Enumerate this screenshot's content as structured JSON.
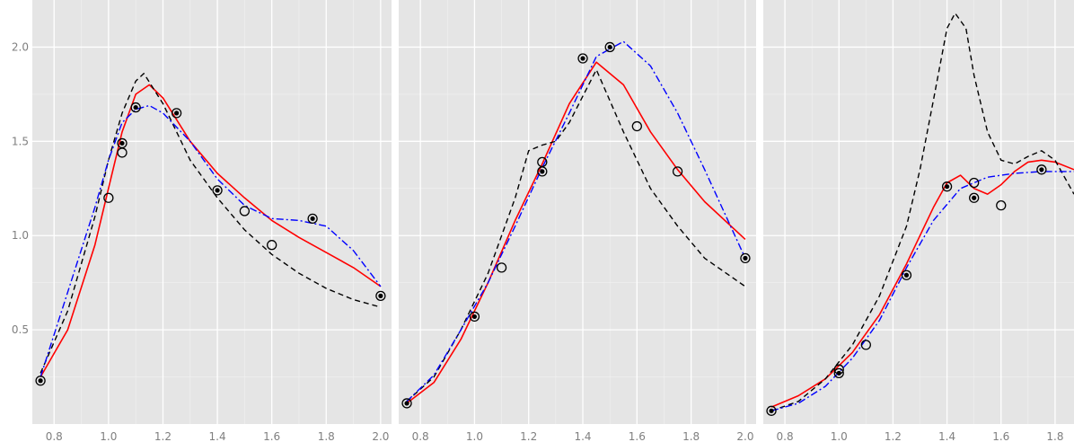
{
  "chart_data": [
    {
      "type": "scatter",
      "title": "",
      "xlabel": "",
      "ylabel": "",
      "xlim": [
        0.72,
        2.04
      ],
      "ylim": [
        0.0,
        2.25
      ],
      "x_ticks": [
        0.8,
        1.0,
        1.2,
        1.4,
        1.6,
        1.8,
        2.0
      ],
      "x_tick_labels": [
        "0.8",
        "1.0",
        "1.2",
        "1.4",
        "1.6",
        "1.8",
        "2.0"
      ],
      "y_ticks": [
        0.5,
        1.0,
        1.5,
        2.0
      ],
      "y_tick_labels": [
        "0.5",
        "1.0",
        "1.5",
        "2.0"
      ],
      "grid": true,
      "points_filled": [
        [
          0.75,
          0.23
        ],
        [
          1.05,
          1.49
        ],
        [
          1.1,
          1.68
        ],
        [
          1.25,
          1.65
        ],
        [
          1.4,
          1.24
        ],
        [
          1.75,
          1.09
        ],
        [
          2.0,
          0.68
        ]
      ],
      "points_open": [
        [
          1.0,
          1.2
        ],
        [
          1.05,
          1.44
        ],
        [
          1.5,
          1.13
        ],
        [
          1.6,
          0.95
        ]
      ],
      "series": [
        {
          "style": "solid",
          "color": "#ff0000",
          "x": [
            0.75,
            0.85,
            0.95,
            1.0,
            1.05,
            1.1,
            1.15,
            1.2,
            1.3,
            1.4,
            1.5,
            1.6,
            1.7,
            1.8,
            1.9,
            2.0
          ],
          "y": [
            0.25,
            0.5,
            0.95,
            1.25,
            1.55,
            1.75,
            1.8,
            1.73,
            1.5,
            1.33,
            1.2,
            1.08,
            0.99,
            0.91,
            0.83,
            0.73
          ]
        },
        {
          "style": "dashed",
          "color": "#000000",
          "x": [
            0.75,
            0.85,
            0.95,
            1.0,
            1.05,
            1.1,
            1.13,
            1.2,
            1.3,
            1.4,
            1.5,
            1.6,
            1.7,
            1.8,
            1.9,
            2.0
          ],
          "y": [
            0.27,
            0.6,
            1.1,
            1.4,
            1.65,
            1.82,
            1.86,
            1.7,
            1.4,
            1.2,
            1.03,
            0.9,
            0.8,
            0.72,
            0.66,
            0.62
          ]
        },
        {
          "style": "dotdash",
          "color": "#0000ff",
          "x": [
            0.75,
            0.85,
            0.95,
            1.0,
            1.05,
            1.1,
            1.15,
            1.2,
            1.3,
            1.4,
            1.5,
            1.6,
            1.7,
            1.8,
            1.9,
            2.0
          ],
          "y": [
            0.25,
            0.7,
            1.15,
            1.4,
            1.6,
            1.67,
            1.69,
            1.65,
            1.5,
            1.3,
            1.16,
            1.09,
            1.08,
            1.05,
            0.92,
            0.73
          ]
        }
      ]
    },
    {
      "type": "scatter",
      "title": "",
      "xlabel": "",
      "ylabel": "",
      "xlim": [
        0.72,
        2.04
      ],
      "ylim": [
        0.0,
        2.25
      ],
      "x_ticks": [
        0.8,
        1.0,
        1.2,
        1.4,
        1.6,
        1.8,
        2.0
      ],
      "x_tick_labels": [
        "0.8",
        "1.0",
        "1.2",
        "1.4",
        "1.6",
        "1.8",
        "2.0"
      ],
      "y_ticks": [
        0.5,
        1.0,
        1.5,
        2.0
      ],
      "y_tick_labels": [],
      "grid": true,
      "points_filled": [
        [
          0.75,
          0.11
        ],
        [
          1.0,
          0.57
        ],
        [
          1.25,
          1.34
        ],
        [
          1.4,
          1.94
        ],
        [
          1.5,
          2.0
        ],
        [
          2.0,
          0.88
        ]
      ],
      "points_open": [
        [
          1.1,
          0.83
        ],
        [
          1.25,
          1.39
        ],
        [
          1.6,
          1.58
        ],
        [
          1.75,
          1.34
        ]
      ],
      "series": [
        {
          "style": "solid",
          "color": "#ff0000",
          "x": [
            0.75,
            0.85,
            0.95,
            1.05,
            1.15,
            1.25,
            1.35,
            1.45,
            1.55,
            1.65,
            1.75,
            1.85,
            2.0
          ],
          "y": [
            0.11,
            0.22,
            0.45,
            0.75,
            1.08,
            1.38,
            1.7,
            1.92,
            1.8,
            1.55,
            1.35,
            1.18,
            0.98
          ]
        },
        {
          "style": "dashed",
          "color": "#000000",
          "x": [
            0.75,
            0.85,
            0.95,
            1.05,
            1.15,
            1.2,
            1.25,
            1.3,
            1.35,
            1.45,
            1.55,
            1.65,
            1.75,
            1.85,
            2.0
          ],
          "y": [
            0.12,
            0.25,
            0.5,
            0.8,
            1.2,
            1.45,
            1.48,
            1.5,
            1.6,
            1.88,
            1.55,
            1.25,
            1.05,
            0.88,
            0.73
          ]
        },
        {
          "style": "dotdash",
          "color": "#0000ff",
          "x": [
            0.75,
            0.85,
            0.95,
            1.05,
            1.15,
            1.25,
            1.35,
            1.45,
            1.55,
            1.65,
            1.75,
            1.85,
            2.0
          ],
          "y": [
            0.12,
            0.26,
            0.5,
            0.75,
            1.05,
            1.36,
            1.65,
            1.95,
            2.03,
            1.9,
            1.65,
            1.35,
            0.88
          ]
        }
      ]
    },
    {
      "type": "scatter",
      "title": "",
      "xlabel": "",
      "ylabel": "",
      "xlim": [
        0.72,
        1.87
      ],
      "ylim": [
        0.0,
        2.25
      ],
      "x_ticks": [
        0.8,
        1.0,
        1.2,
        1.4,
        1.6,
        1.8
      ],
      "x_tick_labels": [
        "0.8",
        "1.0",
        "1.2",
        "1.4",
        "1.6",
        "1.8"
      ],
      "y_ticks": [
        0.5,
        1.0,
        1.5,
        2.0
      ],
      "y_tick_labels": [],
      "grid": true,
      "points_filled": [
        [
          0.75,
          0.07
        ],
        [
          1.0,
          0.27
        ],
        [
          1.25,
          0.79
        ],
        [
          1.4,
          1.26
        ],
        [
          1.5,
          1.2
        ],
        [
          1.75,
          1.35
        ]
      ],
      "points_open": [
        [
          1.0,
          0.29
        ],
        [
          1.1,
          0.42
        ],
        [
          1.5,
          1.28
        ],
        [
          1.6,
          1.16
        ]
      ],
      "series": [
        {
          "style": "solid",
          "color": "#ff0000",
          "x": [
            0.75,
            0.85,
            0.95,
            1.05,
            1.15,
            1.25,
            1.35,
            1.4,
            1.45,
            1.5,
            1.55,
            1.6,
            1.65,
            1.7,
            1.75,
            1.8,
            1.87
          ],
          "y": [
            0.09,
            0.15,
            0.24,
            0.38,
            0.58,
            0.85,
            1.15,
            1.28,
            1.32,
            1.25,
            1.22,
            1.27,
            1.34,
            1.39,
            1.4,
            1.39,
            1.35
          ]
        },
        {
          "style": "dashed",
          "color": "#000000",
          "x": [
            0.75,
            0.85,
            0.95,
            1.05,
            1.15,
            1.25,
            1.3,
            1.35,
            1.4,
            1.43,
            1.47,
            1.5,
            1.55,
            1.6,
            1.65,
            1.7,
            1.75,
            1.8,
            1.87
          ],
          "y": [
            0.07,
            0.12,
            0.24,
            0.42,
            0.68,
            1.05,
            1.35,
            1.72,
            2.1,
            2.18,
            2.1,
            1.85,
            1.55,
            1.4,
            1.38,
            1.42,
            1.45,
            1.4,
            1.22
          ]
        },
        {
          "style": "dotdash",
          "color": "#0000ff",
          "x": [
            0.75,
            0.85,
            0.95,
            1.05,
            1.15,
            1.25,
            1.35,
            1.45,
            1.55,
            1.65,
            1.75,
            1.87
          ],
          "y": [
            0.07,
            0.11,
            0.2,
            0.35,
            0.55,
            0.83,
            1.08,
            1.25,
            1.31,
            1.33,
            1.34,
            1.34
          ]
        }
      ]
    }
  ]
}
